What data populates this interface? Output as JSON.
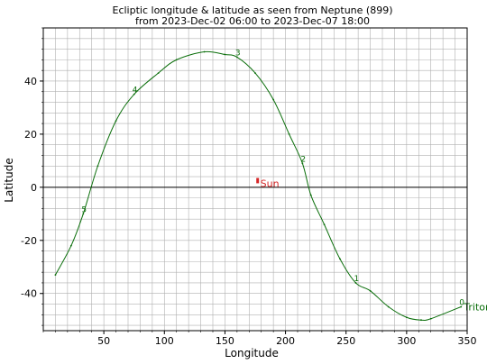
{
  "chart_data": {
    "type": "line",
    "title": "Ecliptic longitude & latitude as seen from Neptune (899)",
    "subtitle": "from 2023-Dec-02 06:00 to 2023-Dec-07 18:00",
    "xlabel": "Longitude",
    "ylabel": "Latitude",
    "xlim": [
      0,
      350
    ],
    "ylim": [
      -54,
      60
    ],
    "x_ticks": [
      50,
      100,
      150,
      200,
      250,
      300,
      350
    ],
    "y_ticks": [
      -40,
      -20,
      0,
      20,
      40
    ],
    "x_grid_step": 10,
    "y_grid_step": 4,
    "grid": true,
    "zero_line": 0,
    "colors": {
      "orbit": "#0a6e0a",
      "sun": "#d62728",
      "grid": "#b0b0b0"
    },
    "series": [
      {
        "name": "Triton",
        "x": [
          345,
          320,
          312,
          300,
          285,
          270,
          258,
          245,
          232,
          221,
          214,
          203,
          190,
          175,
          160,
          150,
          133,
          110,
          95,
          75,
          60,
          45,
          33,
          23,
          10
        ],
        "y": [
          -45,
          -49.5,
          -50,
          -49,
          -45,
          -39,
          -36,
          -27,
          -14,
          -3,
          9,
          20,
          33,
          43,
          49,
          50,
          51,
          48,
          43,
          35,
          25,
          8,
          -10,
          -22,
          -33
        ]
      }
    ],
    "day_labels": [
      {
        "text": "0",
        "x": 345,
        "y": -45
      },
      {
        "text": "1",
        "x": 258,
        "y": -36
      },
      {
        "text": "2",
        "x": 214,
        "y": 9
      },
      {
        "text": "3",
        "x": 160,
        "y": 49
      },
      {
        "text": "4",
        "x": 75,
        "y": 35
      },
      {
        "text": "5",
        "x": 33,
        "y": -10
      }
    ],
    "sun": {
      "name": "Sun",
      "x": 177,
      "y_min": 1.5,
      "y_max": 3.5
    }
  }
}
